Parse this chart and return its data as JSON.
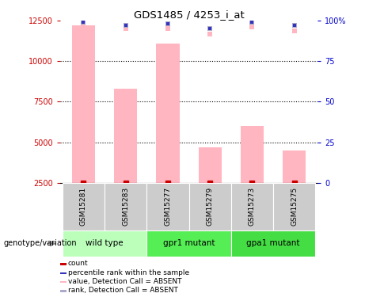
{
  "title": "GDS1485 / 4253_i_at",
  "samples": [
    "GSM15281",
    "GSM15283",
    "GSM15277",
    "GSM15279",
    "GSM15273",
    "GSM15275"
  ],
  "bar_values": [
    12200,
    8300,
    11100,
    4700,
    6000,
    4500
  ],
  "rank_dot_values": [
    12200,
    12000,
    12000,
    11700,
    12100,
    11900
  ],
  "percentile_values": [
    99,
    97,
    98,
    95,
    99,
    97
  ],
  "bar_color": "#FFB6C1",
  "dot_color_red": "#CC0000",
  "dot_color_blue": "#3333BB",
  "dot_color_pink": "#FFB6C1",
  "dot_color_lightblue": "#AAAACC",
  "ylim_left": [
    2500,
    12500
  ],
  "ylim_right": [
    0,
    100
  ],
  "yticks_left": [
    2500,
    5000,
    7500,
    10000,
    12500
  ],
  "yticks_right": [
    0,
    25,
    50,
    75,
    100
  ],
  "ytick_labels_left": [
    "2500",
    "5000",
    "7500",
    "10000",
    "12500"
  ],
  "ytick_labels_right": [
    "0",
    "25",
    "50",
    "75",
    "100%"
  ],
  "grid_values": [
    5000,
    7500,
    10000
  ],
  "left_axis_color": "#CC0000",
  "right_axis_color": "#0000CC",
  "sample_box_color": "#CCCCCC",
  "genotype_label": "genotype/variation",
  "group_defs": [
    {
      "start": 0,
      "end": 1,
      "label": "wild type",
      "color": "#BBFFBB"
    },
    {
      "start": 2,
      "end": 3,
      "label": "gpr1 mutant",
      "color": "#55EE55"
    },
    {
      "start": 4,
      "end": 5,
      "label": "gpa1 mutant",
      "color": "#44DD44"
    }
  ],
  "legend_items": [
    {
      "color": "#CC0000",
      "label": "count"
    },
    {
      "color": "#3333BB",
      "label": "percentile rank within the sample"
    },
    {
      "color": "#FFB6C1",
      "label": "value, Detection Call = ABSENT"
    },
    {
      "color": "#AAAACC",
      "label": "rank, Detection Call = ABSENT"
    }
  ],
  "bar_bottom": 2500,
  "fig_width": 4.61,
  "fig_height": 3.75,
  "dpi": 100
}
